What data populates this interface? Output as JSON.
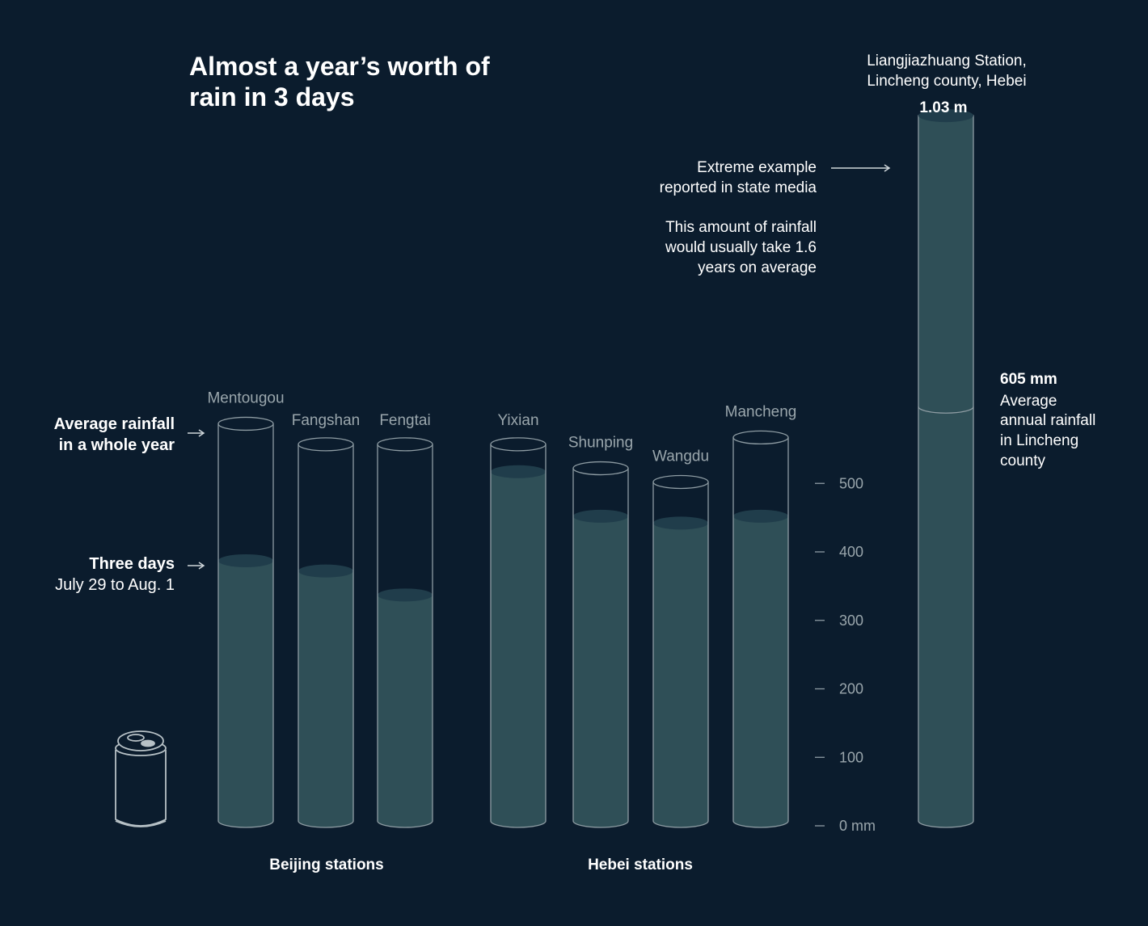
{
  "title_lines": [
    "Almost a year’s worth of",
    "rain in 3 days"
  ],
  "colors": {
    "background": "#0b1c2d",
    "fill": "#2f4f57",
    "fill_top": "#203d4b",
    "outline": "#8e9ca3",
    "muted_text": "#9aa6ac",
    "text": "#ffffff"
  },
  "legend": {
    "annual_label_lines": [
      "Average rainfall",
      "in a whole year"
    ],
    "three_day_title": "Three days",
    "three_day_dates": "July 29 to Aug. 1"
  },
  "groups": {
    "beijing": "Beijing stations",
    "hebei": "Hebei stations"
  },
  "icons": {
    "scale_reference": "soda-can-icon"
  },
  "axis": {
    "ticks": [
      0,
      100,
      200,
      300,
      400,
      500
    ],
    "tick_labels": [
      "0 mm",
      "100",
      "200",
      "300",
      "400",
      "500"
    ]
  },
  "callout": {
    "station_lines": [
      "Liangjiazhuang Station,",
      "Lincheng county, Hebei"
    ],
    "value_label": "1.03 m",
    "extreme_lines": [
      "Extreme example",
      "reported in state media"
    ],
    "years_lines": [
      "This amount of rainfall",
      "would usually take 1.6",
      "years on average"
    ],
    "annual_value_label": "605 mm",
    "annual_lines": [
      "Average",
      "annual rainfall",
      "in Lincheng",
      "county"
    ]
  },
  "chart_data": {
    "type": "bar",
    "unit": "mm",
    "categories": [
      "Mentougou",
      "Fangshan",
      "Fengtai",
      "Yixian",
      "Shunping",
      "Wangdu",
      "Mancheng",
      "Liangjiazhuang Station, Lincheng county, Hebei"
    ],
    "group": [
      "Beijing",
      "Beijing",
      "Beijing",
      "Hebei",
      "Hebei",
      "Hebei",
      "Hebei",
      "Hebei"
    ],
    "series": [
      {
        "name": "Three days",
        "values": [
          380,
          365,
          330,
          510,
          445,
          435,
          445,
          1030
        ]
      },
      {
        "name": "Average rainfall in a whole year",
        "values": [
          580,
          550,
          550,
          550,
          515,
          495,
          560,
          605
        ]
      }
    ],
    "ylim": [
      0,
      1040
    ]
  }
}
